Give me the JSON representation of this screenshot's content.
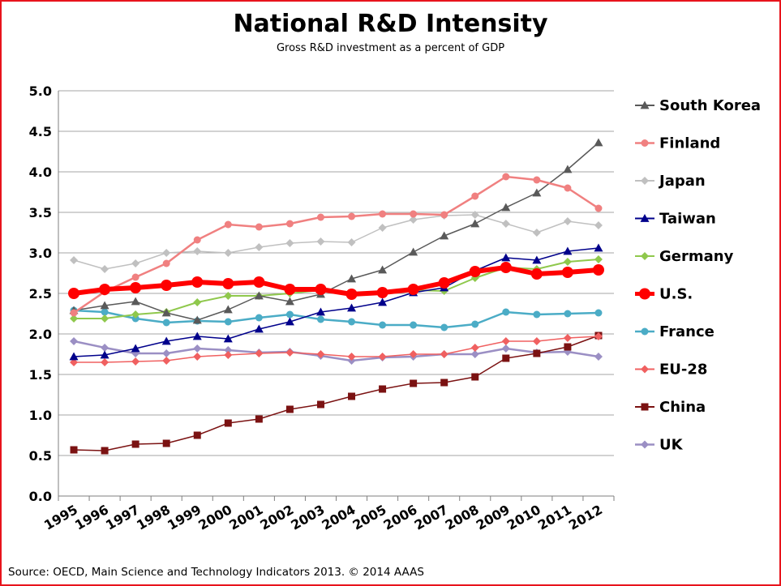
{
  "chart_data": {
    "type": "line",
    "title": "National R&D Intensity",
    "subtitle": "Gross R&D investment as a percent of GDP",
    "source": "Source: OECD, Main Science and Technology Indicators 2013. © 2014 AAAS",
    "x": [
      "1995",
      "1996",
      "1997",
      "1998",
      "1999",
      "2000",
      "2001",
      "2002",
      "2003",
      "2004",
      "2005",
      "2006",
      "2007",
      "2008",
      "2009",
      "2010",
      "2011",
      "2012"
    ],
    "ylim": [
      0,
      5
    ],
    "yticks": [
      "0.0",
      "0.5",
      "1.0",
      "1.5",
      "2.0",
      "2.5",
      "3.0",
      "3.5",
      "4.0",
      "4.5",
      "5.0"
    ],
    "grid": "horizontal",
    "legend_position": "right",
    "series": [
      {
        "name": "South Korea",
        "color": "#595959",
        "marker": "triangle",
        "width": 1.5,
        "values": [
          2.29,
          2.35,
          2.4,
          2.26,
          2.17,
          2.3,
          2.47,
          2.4,
          2.49,
          2.68,
          2.79,
          3.01,
          3.21,
          3.36,
          3.56,
          3.74,
          4.03,
          4.36
        ]
      },
      {
        "name": "Finland",
        "color": "#f08080",
        "marker": "circle",
        "width": 2.5,
        "values": [
          2.26,
          2.52,
          2.7,
          2.87,
          3.16,
          3.35,
          3.32,
          3.36,
          3.44,
          3.45,
          3.48,
          3.48,
          3.47,
          3.7,
          3.94,
          3.9,
          3.8,
          3.55
        ]
      },
      {
        "name": "Japan",
        "color": "#c0c0c0",
        "marker": "diamond",
        "width": 1.5,
        "values": [
          2.91,
          2.8,
          2.87,
          3.0,
          3.02,
          3.0,
          3.07,
          3.12,
          3.14,
          3.13,
          3.31,
          3.41,
          3.46,
          3.47,
          3.36,
          3.25,
          3.39,
          3.34
        ]
      },
      {
        "name": "Taiwan",
        "color": "#00008b",
        "marker": "triangle",
        "width": 1.5,
        "values": [
          1.72,
          1.74,
          1.82,
          1.91,
          1.97,
          1.94,
          2.06,
          2.15,
          2.27,
          2.32,
          2.39,
          2.51,
          2.57,
          2.78,
          2.94,
          2.91,
          3.02,
          3.06
        ]
      },
      {
        "name": "Germany",
        "color": "#8fc84c",
        "marker": "diamond",
        "width": 2,
        "values": [
          2.19,
          2.19,
          2.24,
          2.27,
          2.39,
          2.47,
          2.47,
          2.5,
          2.54,
          2.5,
          2.51,
          2.54,
          2.53,
          2.69,
          2.82,
          2.8,
          2.89,
          2.92
        ]
      },
      {
        "name": "U.S.",
        "color": "#ff0000",
        "marker": "circle-large",
        "width": 6,
        "values": [
          2.5,
          2.55,
          2.57,
          2.6,
          2.64,
          2.62,
          2.64,
          2.55,
          2.55,
          2.49,
          2.51,
          2.55,
          2.63,
          2.77,
          2.82,
          2.74,
          2.76,
          2.79
        ]
      },
      {
        "name": "France",
        "color": "#4bacc6",
        "marker": "circle",
        "width": 2.5,
        "values": [
          2.29,
          2.27,
          2.19,
          2.14,
          2.16,
          2.15,
          2.2,
          2.24,
          2.18,
          2.15,
          2.11,
          2.11,
          2.08,
          2.12,
          2.27,
          2.24,
          2.25,
          2.26
        ]
      },
      {
        "name": "EU-28",
        "color": "#f06060",
        "marker": "diamond",
        "width": 1.5,
        "values": [
          1.65,
          1.65,
          1.66,
          1.67,
          1.72,
          1.74,
          1.76,
          1.77,
          1.75,
          1.72,
          1.72,
          1.75,
          1.75,
          1.83,
          1.91,
          1.91,
          1.95,
          1.97
        ]
      },
      {
        "name": "China",
        "color": "#7b1212",
        "marker": "square",
        "width": 1.5,
        "values": [
          0.57,
          0.56,
          0.64,
          0.65,
          0.75,
          0.9,
          0.95,
          1.07,
          1.13,
          1.23,
          1.32,
          1.39,
          1.4,
          1.47,
          1.7,
          1.76,
          1.84,
          1.98
        ]
      },
      {
        "name": "UK",
        "color": "#9b8fc4",
        "marker": "diamond",
        "width": 2.5,
        "values": [
          1.91,
          1.83,
          1.76,
          1.76,
          1.82,
          1.8,
          1.77,
          1.78,
          1.73,
          1.67,
          1.71,
          1.72,
          1.75,
          1.75,
          1.82,
          1.77,
          1.78,
          1.72
        ]
      }
    ]
  }
}
